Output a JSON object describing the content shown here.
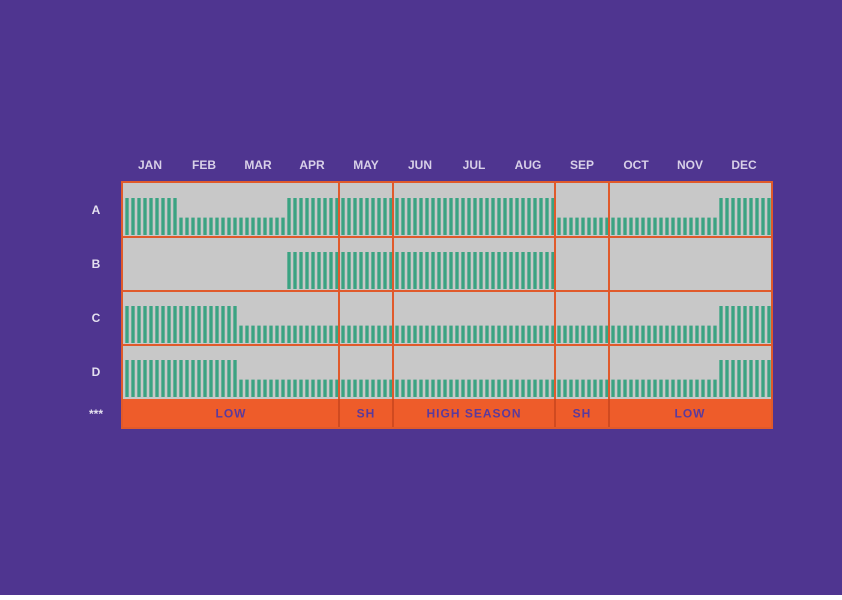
{
  "colors": {
    "background": "#4f3590",
    "panel": "#c8c8c8",
    "grid": "#e05a2b",
    "bar": "#3aa382",
    "season_band": "#ee5c2a",
    "season_text": "#5b3a9c",
    "month_text": "#d8d0e8",
    "row_text": "#e4e0ef"
  },
  "chart_data": {
    "type": "bar",
    "months": [
      "JAN",
      "FEB",
      "MAR",
      "APR",
      "MAY",
      "JUN",
      "JUL",
      "AUG",
      "SEP",
      "OCT",
      "NOV",
      "DEC"
    ],
    "rows": [
      "A",
      "B",
      "C",
      "D"
    ],
    "bars_per_month": 9,
    "level_scale": [
      0,
      1
    ],
    "series": [
      {
        "name": "A",
        "segments": [
          {
            "from": 0,
            "to": 9,
            "level": 1
          },
          {
            "from": 9,
            "to": 27,
            "level": 0.47
          },
          {
            "from": 27,
            "to": 72,
            "level": 1
          },
          {
            "from": 72,
            "to": 99,
            "level": 0.47
          },
          {
            "from": 99,
            "to": 108,
            "level": 1
          }
        ]
      },
      {
        "name": "B",
        "segments": [
          {
            "from": 27,
            "to": 72,
            "level": 1
          }
        ]
      },
      {
        "name": "C",
        "segments": [
          {
            "from": 0,
            "to": 19,
            "level": 1
          },
          {
            "from": 19,
            "to": 99,
            "level": 0.47
          },
          {
            "from": 99,
            "to": 108,
            "level": 1
          }
        ]
      },
      {
        "name": "D",
        "segments": [
          {
            "from": 0,
            "to": 19,
            "level": 1
          },
          {
            "from": 19,
            "to": 99,
            "level": 0.47
          },
          {
            "from": 99,
            "to": 108,
            "level": 1
          }
        ]
      }
    ],
    "season_row_label": "***",
    "season_boundaries_months": [
      4,
      5,
      8,
      9
    ],
    "seasons": [
      {
        "label": "LOW",
        "from_month": 0,
        "to_month": 4
      },
      {
        "label": "SH",
        "from_month": 4,
        "to_month": 5
      },
      {
        "label": "HIGH SEASON",
        "from_month": 5,
        "to_month": 8
      },
      {
        "label": "SH",
        "from_month": 8,
        "to_month": 9
      },
      {
        "label": "LOW",
        "from_month": 9,
        "to_month": 12
      }
    ]
  }
}
